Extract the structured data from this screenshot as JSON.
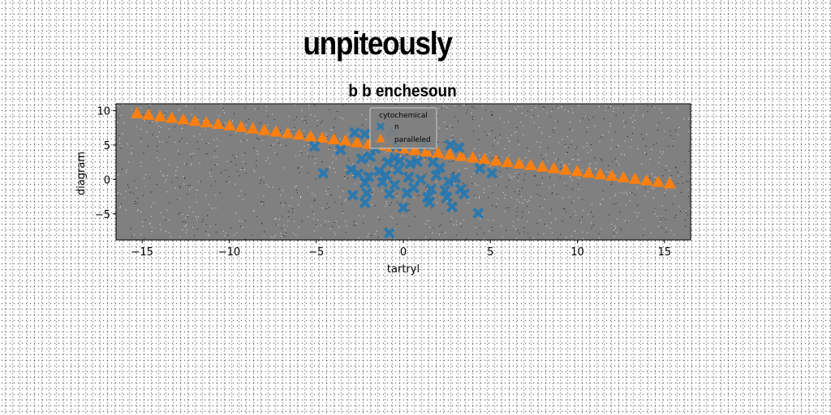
{
  "figure": {
    "suptitle": "unpiteously"
  },
  "chart_data": {
    "type": "scatter",
    "title": "b b enchesoun",
    "xlabel": "tartryl",
    "ylabel": "diagram",
    "xlim": [
      -16.5,
      16.5
    ],
    "ylim": [
      -8.8,
      11.0
    ],
    "xticks": [
      -15,
      -10,
      -5,
      0,
      5,
      10,
      15
    ],
    "yticks": [
      -5,
      0,
      5,
      10
    ],
    "grid": false,
    "plot_background": "#808080",
    "legend": {
      "title": "cytochemical",
      "placement": "top-center"
    },
    "series": [
      {
        "name": "n",
        "marker": "X",
        "color": "#1f77b4",
        "points": [
          [
            -2.8,
            6.8
          ],
          [
            -2.2,
            6.6
          ],
          [
            -0.6,
            7.0
          ],
          [
            -5.1,
            4.8
          ],
          [
            -3.6,
            4.3
          ],
          [
            -1.6,
            4.5
          ],
          [
            -0.4,
            4.8
          ],
          [
            1.2,
            5.0
          ],
          [
            2.7,
            5.0
          ],
          [
            3.2,
            4.6
          ],
          [
            -2.4,
            3.0
          ],
          [
            -1.9,
            3.3
          ],
          [
            -0.9,
            2.5
          ],
          [
            -0.5,
            3.1
          ],
          [
            -0.2,
            2.7
          ],
          [
            0.4,
            2.3
          ],
          [
            0.8,
            2.6
          ],
          [
            1.7,
            2.5
          ],
          [
            2.1,
            1.7
          ],
          [
            4.4,
            1.6
          ],
          [
            5.1,
            0.9
          ],
          [
            -4.6,
            0.9
          ],
          [
            -3.0,
            1.4
          ],
          [
            -2.6,
            0.8
          ],
          [
            -2.0,
            0.4
          ],
          [
            -1.4,
            1.2
          ],
          [
            -1.0,
            0.6
          ],
          [
            -0.3,
            1.4
          ],
          [
            0.3,
            0.3
          ],
          [
            1.0,
            0.0
          ],
          [
            1.9,
            0.6
          ],
          [
            2.6,
            -0.3
          ],
          [
            3.0,
            0.2
          ],
          [
            -2.2,
            -0.5
          ],
          [
            -1.2,
            -0.4
          ],
          [
            -0.5,
            -0.8
          ],
          [
            0.6,
            -1.2
          ],
          [
            1.6,
            -1.4
          ],
          [
            2.4,
            -1.6
          ],
          [
            3.3,
            -1.4
          ],
          [
            -2.9,
            -2.3
          ],
          [
            -2.1,
            -2.0
          ],
          [
            -0.8,
            -2.1
          ],
          [
            0.2,
            -2.0
          ],
          [
            1.4,
            -2.6
          ],
          [
            2.5,
            -2.6
          ],
          [
            3.5,
            -2.1
          ],
          [
            -2.2,
            -3.4
          ],
          [
            1.5,
            -3.3
          ],
          [
            2.8,
            -4.0
          ],
          [
            0.0,
            -4.1
          ],
          [
            4.3,
            -4.9
          ],
          [
            -0.8,
            -7.8
          ]
        ]
      },
      {
        "name": "paralleled",
        "marker": "^",
        "color": "#ff7f0e",
        "line": {
          "x_start": -15.3,
          "x_end": 15.3,
          "y_start": 9.6,
          "y_end": -0.6,
          "count": 47
        }
      }
    ]
  }
}
